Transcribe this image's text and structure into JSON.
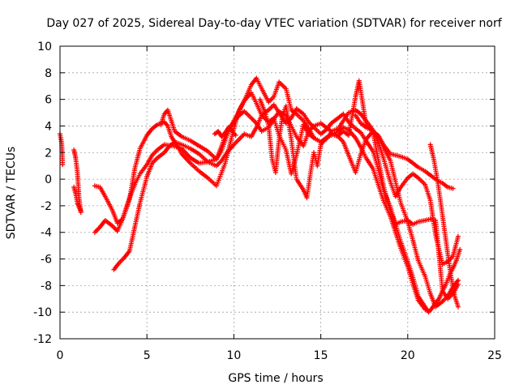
{
  "chart_data": {
    "type": "scatter",
    "title": "Day 027 of 2025, Sidereal Day-to-day VTEC variation (SDTVAR) for receiver norf",
    "xlabel": "GPS time / hours",
    "ylabel": "SDTVAR / TECUs",
    "xlim": [
      0,
      25
    ],
    "ylim": [
      -12,
      10
    ],
    "x_ticks": [
      0,
      5,
      10,
      15,
      20,
      25
    ],
    "y_ticks": [
      -12,
      -10,
      -8,
      -6,
      -4,
      -2,
      0,
      2,
      4,
      6,
      8,
      10
    ],
    "x_tick_labels": [
      "0",
      "5",
      "10",
      "15",
      "20",
      "25"
    ],
    "y_tick_labels": [
      "-12",
      "-10",
      "-8",
      "-6",
      "-4",
      "-2",
      "0",
      "2",
      "4",
      "6",
      "8",
      "10"
    ],
    "grid": true,
    "marker": "plus",
    "color": "#ff0000",
    "series": [
      {
        "x": [
          0,
          0.1,
          0.15
        ],
        "y": [
          3.4,
          2.7,
          1.1
        ]
      },
      {
        "x": [
          0.8,
          0.9,
          1.0,
          1.1,
          1.2
        ],
        "y": [
          2.2,
          1.6,
          0.5,
          -1.5,
          -2.5
        ]
      },
      {
        "x": [
          0.8,
          0.9,
          1.0,
          1.1,
          1.2
        ],
        "y": [
          -0.6,
          -1.1,
          -1.8,
          -2.1,
          -2.4
        ]
      },
      {
        "x": [
          2.0,
          2.3,
          2.6,
          3.0,
          3.3,
          3.6,
          4.0,
          4.3,
          4.6,
          5.0,
          5.3,
          5.6,
          6.0,
          6.2,
          6.4,
          6.6,
          6.8,
          7.0,
          7.5,
          8.0,
          8.5,
          9.0,
          9.5,
          10.0,
          10.3,
          10.6,
          11.0,
          11.3,
          11.6,
          12.0,
          12.3,
          12.6,
          13.0,
          13.3,
          13.6,
          14.0,
          14.3,
          14.6,
          15.0,
          15.3,
          15.6,
          16.0,
          16.3,
          16.6,
          17.0,
          17.3,
          17.6,
          18.0,
          18.3,
          18.6,
          19.0,
          19.3,
          19.6,
          20.0,
          20.3,
          20.6,
          21.0,
          21.2,
          21.4,
          21.6,
          21.8,
          22.0,
          22.2,
          22.4,
          22.6,
          22.8,
          23.0
        ],
        "y": [
          -0.5,
          -0.6,
          -1.3,
          -2.3,
          -3.3,
          -3.0,
          -1.5,
          0.8,
          2.3,
          3.3,
          3.8,
          4.1,
          4.3,
          4.0,
          3.2,
          2.8,
          2.4,
          1.9,
          1.2,
          0.6,
          0.1,
          -0.5,
          1.2,
          3.8,
          5.2,
          5.9,
          6.5,
          5.7,
          4.8,
          5.2,
          5.6,
          5.0,
          4.2,
          4.6,
          5.3,
          4.9,
          4.3,
          3.9,
          3.4,
          3.7,
          4.2,
          4.6,
          4.9,
          4.3,
          3.8,
          3.5,
          2.9,
          2.1,
          0.8,
          -0.8,
          -2.1,
          -3.4,
          -4.7,
          -6.2,
          -7.4,
          -8.8,
          -9.6,
          -10.0,
          -9.7,
          -9.3,
          -9.0,
          -8.4,
          -7.9,
          -7.2,
          -6.7,
          -6.1,
          -5.3
        ]
      },
      {
        "x": [
          2.0,
          2.3,
          2.6,
          3.0,
          3.3,
          3.6,
          4.0,
          4.3,
          4.6,
          5.0,
          5.3,
          5.6,
          6.0,
          6.5,
          7.0,
          7.5,
          8.0,
          8.5,
          9.0,
          9.3,
          9.6,
          10.0,
          10.3,
          10.6,
          11.0,
          11.3,
          11.6,
          12.0,
          12.3,
          12.6,
          13.0,
          13.3,
          13.6,
          14.0,
          14.3,
          14.6,
          15.0,
          15.3,
          15.6,
          16.0,
          16.3,
          16.6,
          17.0,
          17.3,
          17.6,
          18.0,
          18.3,
          18.6,
          19.0,
          19.3,
          19.6,
          20.0,
          20.3,
          20.6,
          21.0
        ],
        "y": [
          -4.0,
          -3.6,
          -3.1,
          -3.5,
          -3.9,
          -3.0,
          -1.4,
          -0.4,
          0.4,
          1.1,
          1.8,
          2.2,
          2.6,
          2.5,
          2.3,
          1.6,
          1.2,
          1.3,
          1.5,
          2.2,
          3.3,
          4.4,
          5.1,
          5.9,
          7.1,
          7.6,
          6.8,
          5.8,
          6.2,
          7.3,
          6.8,
          5.2,
          4.9,
          4.4,
          3.8,
          3.1,
          2.8,
          3.1,
          3.3,
          3.6,
          3.9,
          3.7,
          3.1,
          2.4,
          1.6,
          0.8,
          -0.4,
          -1.6,
          -2.8,
          -4.0,
          -5.2,
          -6.6,
          -7.9,
          -9.1,
          -9.8
        ]
      },
      {
        "x": [
          3.1,
          3.4,
          3.7,
          4.0,
          4.3,
          4.6,
          5.0,
          5.3,
          5.6,
          6.0,
          6.3,
          6.6,
          7.0,
          7.5,
          8.0,
          8.5,
          9.0,
          9.3,
          9.6,
          10.0,
          10.3,
          10.6,
          11.0,
          11.3,
          11.6,
          12.0,
          12.3,
          12.6,
          13.0,
          13.3,
          13.6,
          14.0,
          14.3,
          14.6,
          15.0,
          15.3,
          15.6,
          16.0,
          16.3,
          16.6,
          17.0,
          17.2,
          17.4,
          17.6,
          18.0,
          18.3,
          18.6,
          19.0,
          19.3,
          19.6,
          20.0,
          20.3,
          20.6,
          21.0,
          21.3,
          21.6,
          22.0,
          22.3,
          22.6,
          22.9
        ],
        "y": [
          -6.8,
          -6.3,
          -5.9,
          -5.4,
          -3.6,
          -1.8,
          0.2,
          1.2,
          1.6,
          2.0,
          2.5,
          2.8,
          2.6,
          2.3,
          1.9,
          1.3,
          1.0,
          1.4,
          2.0,
          2.6,
          3.0,
          3.4,
          3.2,
          3.9,
          4.8,
          4.3,
          4.6,
          3.3,
          2.2,
          0.4,
          1.8,
          4.1,
          3.4,
          3.1,
          2.8,
          3.0,
          3.5,
          3.3,
          3.6,
          3.3,
          6.2,
          7.4,
          5.8,
          4.1,
          3.6,
          1.5,
          -0.5,
          -2.4,
          -3.4,
          -3.2,
          -3.1,
          -3.4,
          -3.2,
          -3.1,
          -3.0,
          -3.1,
          -8.4,
          -9.0,
          -8.6,
          -7.9
        ]
      },
      {
        "x": [
          5.8,
          6.0,
          6.2,
          6.4,
          6.6,
          7.0,
          7.5,
          8.0,
          8.5,
          9.0,
          9.3,
          9.6,
          10.0,
          10.3,
          10.6,
          11.0,
          11.3,
          11.6,
          12.0,
          12.3,
          12.6,
          13.0,
          13.3,
          13.6,
          14.0,
          14.3,
          14.6,
          15.0,
          15.3,
          15.6,
          16.0,
          16.3,
          16.6,
          17.0,
          17.3,
          17.6,
          18.0,
          18.3,
          18.6,
          19.0,
          19.3,
          19.6,
          20.0,
          20.3,
          20.6,
          21.0,
          21.3,
          21.6,
          22.0,
          22.3,
          22.6,
          22.9
        ],
        "y": [
          4.1,
          4.9,
          5.2,
          4.4,
          3.6,
          3.2,
          2.9,
          2.5,
          2.1,
          1.5,
          2.5,
          3.6,
          4.3,
          4.8,
          5.1,
          4.6,
          4.2,
          3.6,
          3.9,
          4.5,
          5.1,
          4.8,
          4.0,
          3.2,
          2.5,
          3.6,
          4.0,
          4.2,
          3.9,
          3.6,
          3.8,
          4.4,
          5.0,
          5.2,
          4.9,
          4.4,
          3.7,
          2.8,
          1.6,
          -0.2,
          -1.3,
          -0.6,
          0.1,
          0.4,
          0.1,
          -0.4,
          -1.6,
          -4.2,
          -6.4,
          -6.2,
          -5.8,
          -4.3
        ]
      },
      {
        "x": [
          11.5,
          11.8,
          12.0,
          12.2,
          12.4,
          12.6,
          12.8,
          13.0,
          13.3,
          13.6,
          14.0,
          14.2,
          14.4,
          14.6,
          14.8,
          15.0,
          15.3,
          15.6,
          16.0,
          16.3,
          16.6,
          17.0,
          17.3,
          17.6,
          18.0,
          18.3,
          18.6,
          19.0,
          19.3,
          19.6,
          20.0,
          20.3,
          20.6,
          21.0,
          21.3,
          21.6,
          22.0,
          22.3,
          22.6,
          22.9
        ],
        "y": [
          6.0,
          5.0,
          4.0,
          1.5,
          0.5,
          3.0,
          4.8,
          5.5,
          3.0,
          0.0,
          -0.8,
          -1.4,
          0.4,
          2.0,
          1.0,
          2.6,
          3.1,
          3.4,
          3.2,
          2.8,
          1.8,
          0.5,
          1.9,
          3.0,
          3.6,
          3.2,
          2.4,
          1.4,
          -0.2,
          -1.8,
          -3.2,
          -4.6,
          -6.1,
          -7.3,
          -8.6,
          -9.6,
          -9.2,
          -8.8,
          -8.1,
          -7.6
        ]
      },
      {
        "x": [
          8.9,
          9.1,
          9.3,
          9.5,
          9.7,
          9.9,
          10.1
        ],
        "y": [
          3.4,
          3.6,
          3.2,
          3.5,
          3.9,
          3.6,
          3.3
        ]
      },
      {
        "x": [
          17.0,
          17.3,
          17.6,
          18.0,
          18.3,
          18.6,
          19.0,
          19.3,
          19.6,
          20.0,
          20.3,
          20.6,
          21.0,
          21.3,
          21.6,
          22.0,
          22.3,
          22.6
        ],
        "y": [
          4.8,
          4.2,
          3.9,
          3.6,
          3.3,
          2.6,
          1.9,
          1.8,
          1.7,
          1.5,
          1.2,
          0.9,
          0.6,
          0.3,
          0.0,
          -0.3,
          -0.6,
          -0.7
        ]
      },
      {
        "x": [
          21.3,
          21.5,
          21.7,
          21.9,
          22.1,
          22.3,
          22.5,
          22.7,
          22.9
        ],
        "y": [
          2.6,
          1.5,
          0.0,
          -1.8,
          -3.7,
          -5.6,
          -7.4,
          -8.8,
          -9.6
        ]
      }
    ]
  }
}
